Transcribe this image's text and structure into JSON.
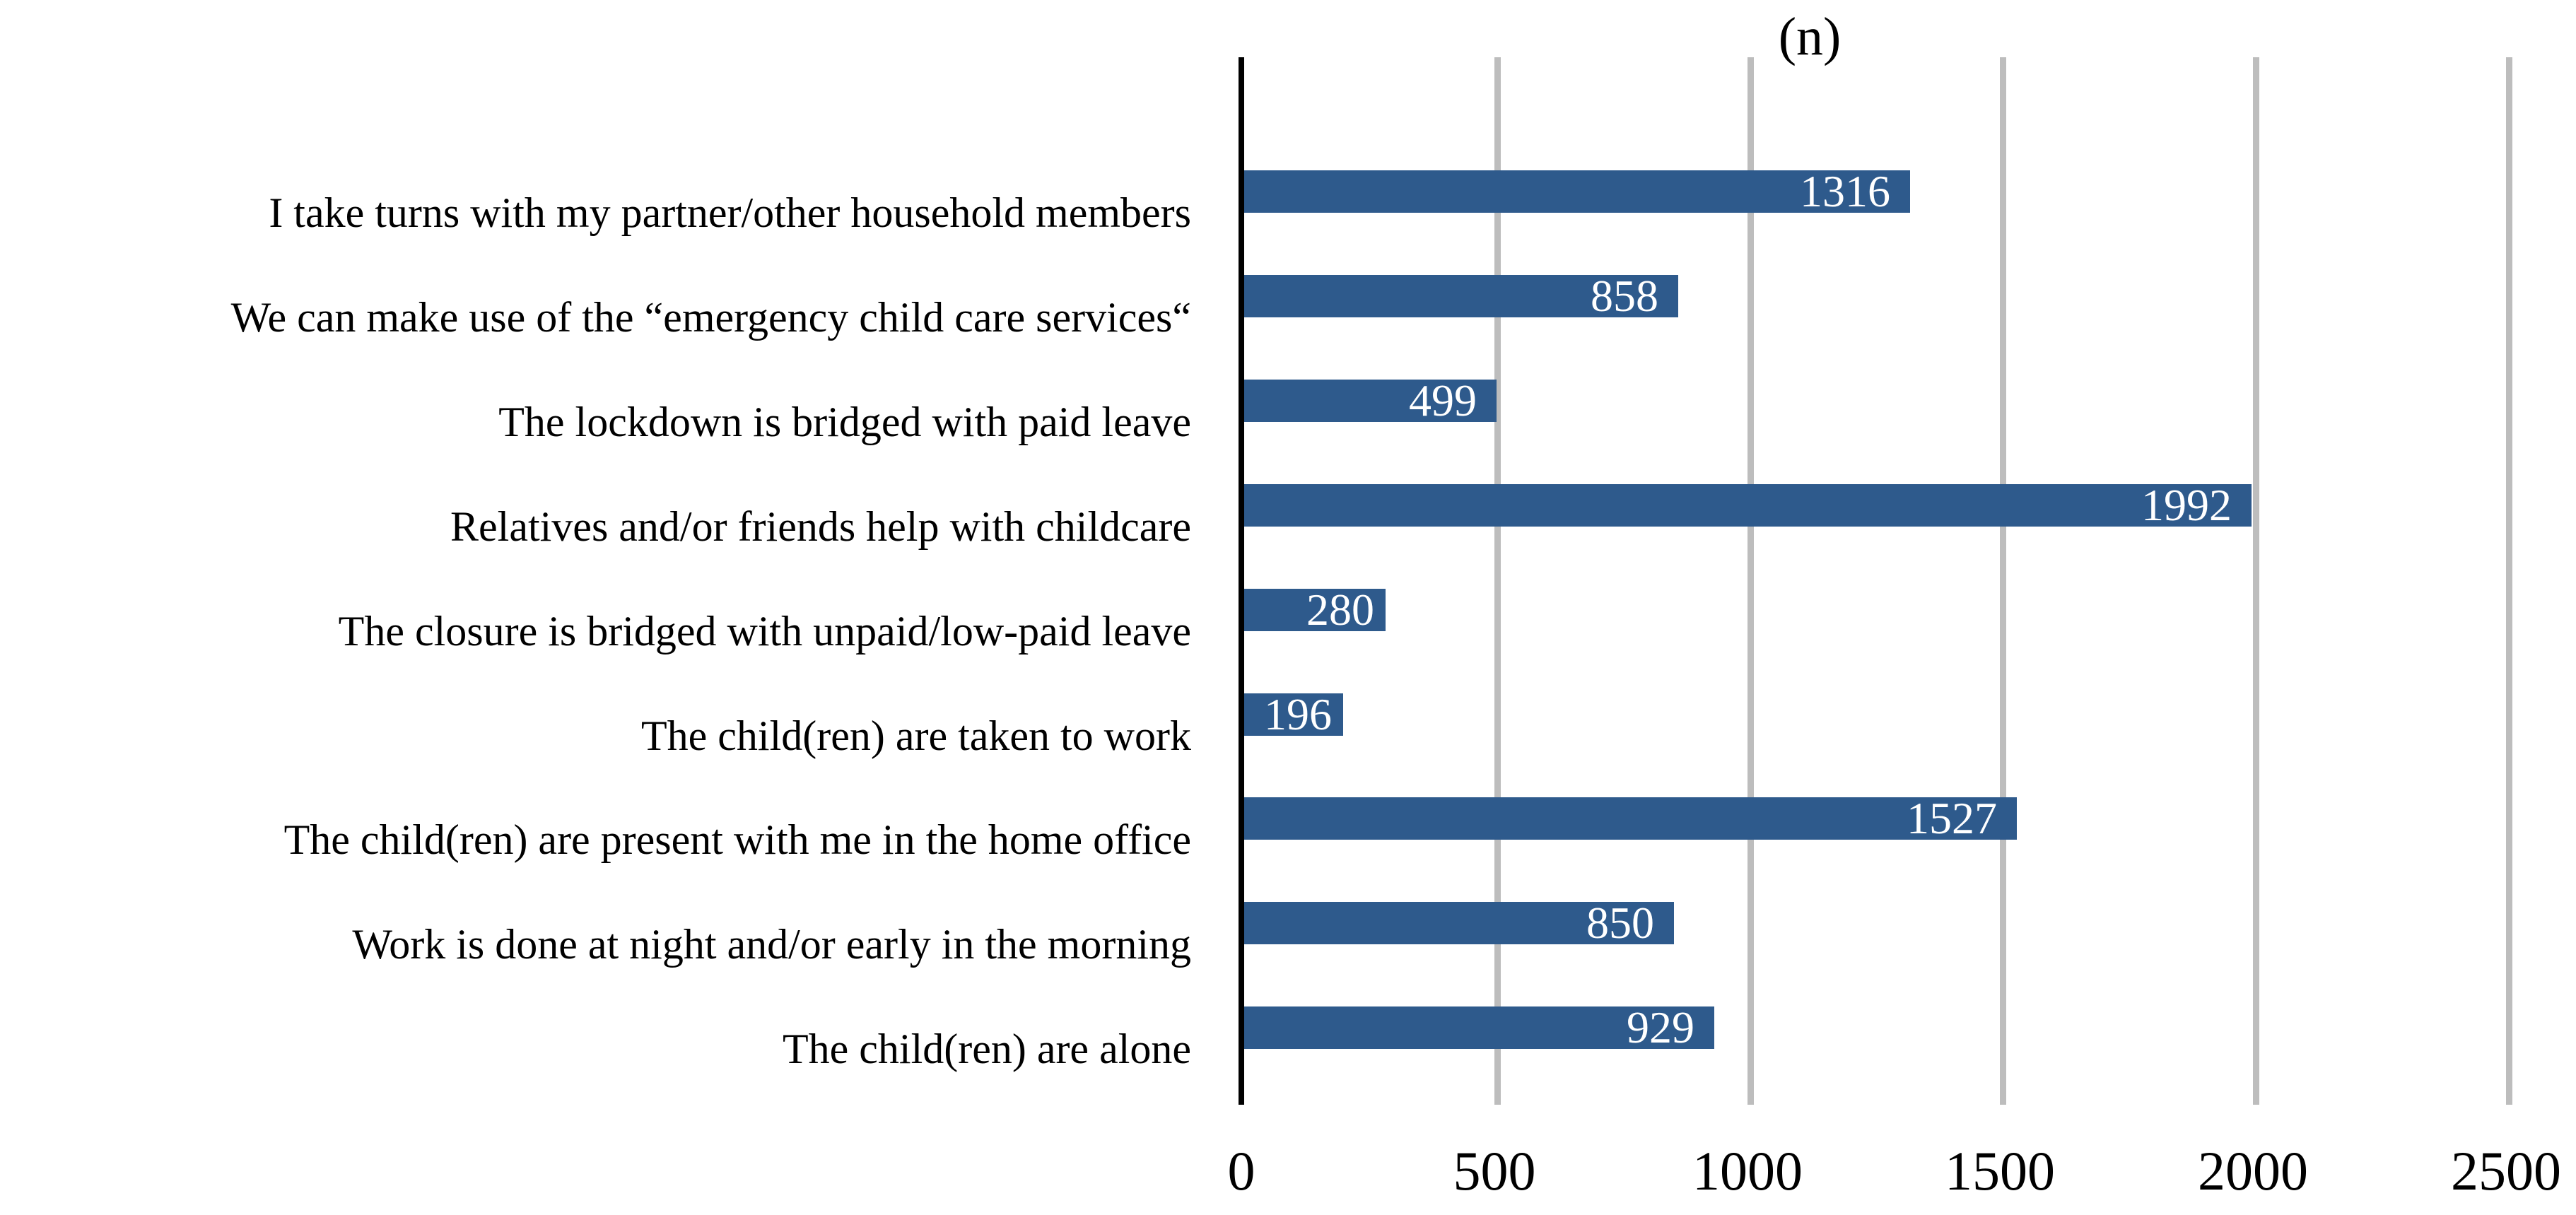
{
  "chart_data": {
    "type": "bar",
    "orientation": "horizontal",
    "title": "(n)",
    "categories": [
      "I take turns with my partner/other household members",
      "We can make use of the “emergency child care services“",
      "The lockdown is bridged with paid leave",
      "Relatives and/or friends help with childcare",
      "The closure is bridged with unpaid/low-paid leave",
      "The child(ren) are taken to work",
      "The child(ren) are present with me in the home office",
      "Work is done at night and/or early in the morning",
      "The child(ren) are alone"
    ],
    "values": [
      1316,
      858,
      499,
      1992,
      280,
      196,
      1527,
      850,
      929
    ],
    "xlabel": "",
    "ylabel": "",
    "xlim": [
      0,
      2500
    ],
    "x_ticks": [
      0,
      500,
      1000,
      1500,
      2000,
      2500
    ],
    "grid": "vertical-gridlines-on",
    "legend": "none",
    "bar_color": "#2E5A8C",
    "gridline_color": "#BDBDBD",
    "axis_line_color": "#000000",
    "value_label_color": "#FFFFFF",
    "text_color": "#000000"
  }
}
